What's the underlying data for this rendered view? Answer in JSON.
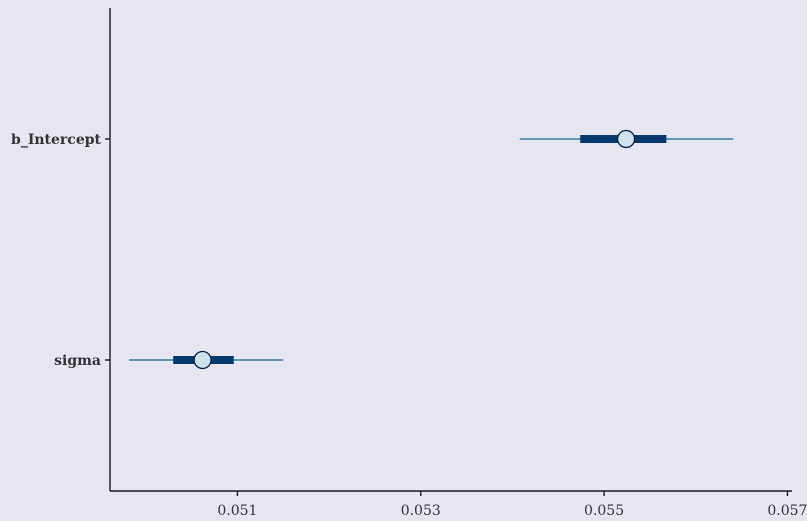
{
  "chart_data": {
    "type": "interval",
    "parameters": [
      {
        "name": "b_Intercept",
        "point": 0.05524,
        "inner": [
          0.05474,
          0.05568
        ],
        "outer": [
          0.05408,
          0.05641
        ]
      },
      {
        "name": "sigma",
        "point": 0.05062,
        "inner": [
          0.0503,
          0.05096
        ],
        "outer": [
          0.04982,
          0.0515
        ]
      }
    ],
    "x_ticks": [
      "0.051",
      "0.053",
      "0.055",
      "0.057"
    ],
    "x_tick_values": [
      0.051,
      0.053,
      0.055,
      0.057
    ],
    "xlim": [
      0.04961,
      0.05705
    ],
    "title": "",
    "xlabel": "",
    "ylabel": "",
    "grid": false
  },
  "colors": {
    "background": "#e6e6f1",
    "axis": "#1a1a1a",
    "outer_interval": "#6497b1",
    "inner_interval": "#03396c",
    "point_fill": "#d1e1ec",
    "point_stroke": "#011f4b",
    "label": "#333333"
  }
}
